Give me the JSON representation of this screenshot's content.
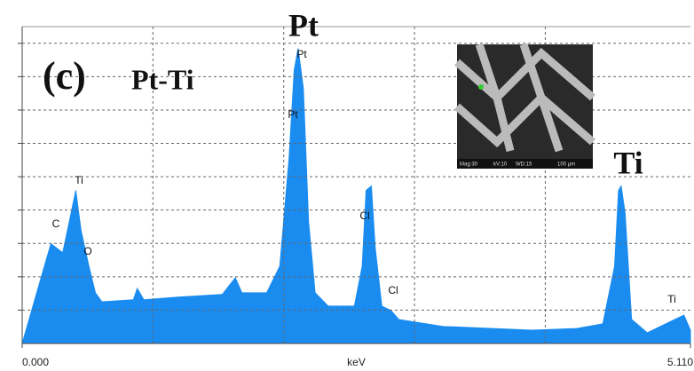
{
  "chart_data": {
    "type": "area",
    "annotations": [
      "(c)",
      "Pt-Ti",
      "Pt",
      "Ti",
      "Pt",
      "Pt",
      "Ti",
      "C",
      "O",
      "Cl",
      "Cl",
      "Ti"
    ],
    "xlabel": "keV",
    "inset_caption": [
      "Mag:30",
      "kV:10",
      "WD:15",
      "100 µm"
    ],
    "x": [
      0,
      0.17,
      0.22,
      0.31,
      0.36,
      0.41,
      0.45,
      0.51,
      0.56,
      0.61,
      0.85,
      0.88,
      0.93,
      1.19,
      1.53,
      1.63,
      1.68,
      1.87,
      1.97,
      2.04,
      2.08,
      2.11,
      2.15,
      2.19,
      2.24,
      2.34,
      2.54,
      2.6,
      2.63,
      2.67,
      2.7,
      2.75,
      2.82,
      2.88,
      3.22,
      3.9,
      4.24,
      4.44,
      4.53,
      4.56,
      4.58,
      4.61,
      4.66,
      4.78,
      4.99,
      5.06,
      5.11
    ],
    "series": [
      {
        "color": "#1a8cf0",
        "values": [
          0,
          2.32,
          2.99,
          2.72,
          3.65,
          4.59,
          3.39,
          2.32,
          1.52,
          1.25,
          1.31,
          1.65,
          1.31,
          1.39,
          1.47,
          1.97,
          1.52,
          1.52,
          2.32,
          5.52,
          8.19,
          8.85,
          7.65,
          3.65,
          1.52,
          1.12,
          1.12,
          2.32,
          4.59,
          4.72,
          2.85,
          1.12,
          0.99,
          0.72,
          0.51,
          0.4,
          0.45,
          0.59,
          2.32,
          4.59,
          4.72,
          3.92,
          0.72,
          0.32,
          0.72,
          0.85,
          0.4
        ]
      }
    ],
    "xlim": [
      0,
      5.11
    ],
    "xticks": [
      {
        "value": 0,
        "label": "0.000"
      },
      {
        "value": 5.11,
        "label": "5.110"
      }
    ],
    "xgrid": [
      1,
      2,
      3,
      4
    ],
    "ylim": [
      0,
      9.5
    ],
    "ygrid": [
      1,
      2,
      3,
      4,
      5,
      6,
      7,
      8,
      9
    ],
    "grid": true
  }
}
